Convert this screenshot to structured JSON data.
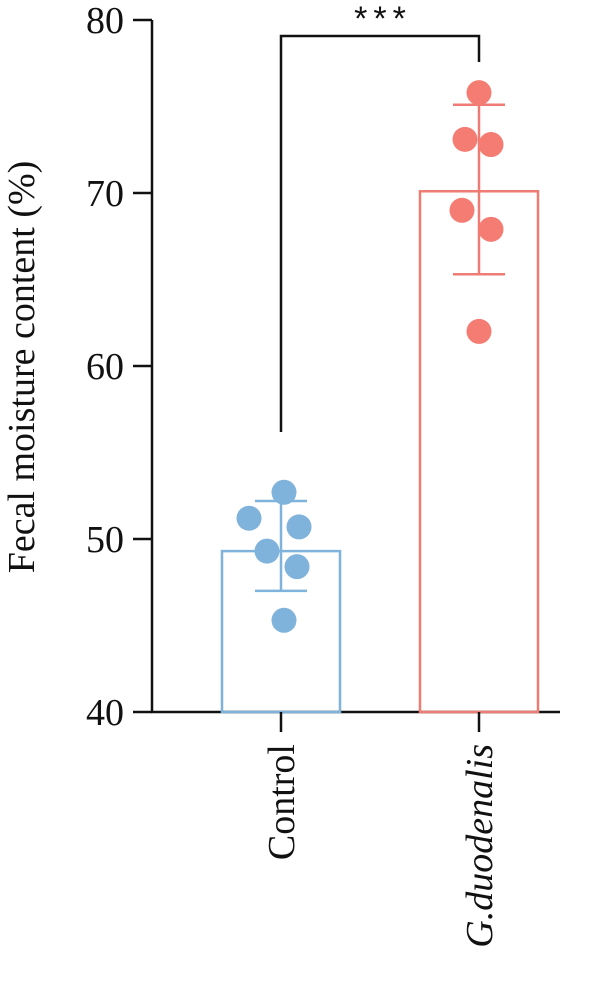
{
  "chart_data": {
    "type": "bar",
    "ylabel": "Fecal moisture content (%)",
    "ylim": [
      40,
      80
    ],
    "yticks": [
      "40",
      "50",
      "60",
      "70",
      "80"
    ],
    "categories": [
      "Control",
      "G.duodenalis"
    ],
    "category_italic": [
      false,
      true
    ],
    "colors": [
      "#7fb3dc",
      "#ee7b74"
    ],
    "dot_colors": [
      "#7fb3dc",
      "#f47c72"
    ],
    "values": [
      49.3,
      70.1
    ],
    "error": [
      {
        "low": 47.0,
        "high": 52.2
      },
      {
        "low": 65.3,
        "high": 75.1
      }
    ],
    "points": [
      [
        52.7,
        51.2,
        50.7,
        49.3,
        48.4,
        45.3
      ],
      [
        75.8,
        73.1,
        72.8,
        69.0,
        67.9,
        62.0
      ]
    ],
    "significance": {
      "label": "***",
      "between": [
        0,
        1
      ]
    }
  }
}
